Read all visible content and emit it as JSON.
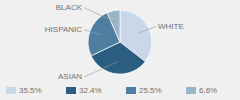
{
  "chart_data": {
    "type": "pie",
    "categories": [
      "WHITE",
      "ASIAN",
      "HISPANIC",
      "BLACK"
    ],
    "values": [
      35.5,
      32.4,
      25.5,
      6.6
    ],
    "value_labels": [
      "35.5%",
      "32.4%",
      "25.5%",
      "6.6%"
    ],
    "colors": [
      "#c8d8e8",
      "#2b5d82",
      "#4e7fa0",
      "#9ab5c8"
    ],
    "legend": "bottom"
  }
}
